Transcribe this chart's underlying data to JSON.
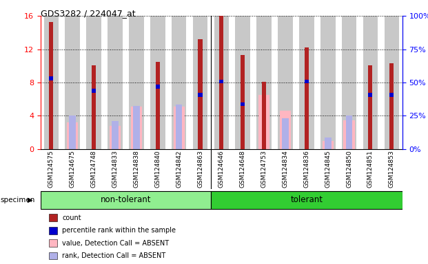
{
  "title": "GDS3282 / 224047_at",
  "samples": [
    "GSM124575",
    "GSM124675",
    "GSM124748",
    "GSM124833",
    "GSM124838",
    "GSM124840",
    "GSM124842",
    "GSM124863",
    "GSM124646",
    "GSM124648",
    "GSM124753",
    "GSM124834",
    "GSM124836",
    "GSM124845",
    "GSM124850",
    "GSM124851",
    "GSM124853"
  ],
  "group": [
    "non-tolerant",
    "non-tolerant",
    "non-tolerant",
    "non-tolerant",
    "non-tolerant",
    "non-tolerant",
    "non-tolerant",
    "non-tolerant",
    "tolerant",
    "tolerant",
    "tolerant",
    "tolerant",
    "tolerant",
    "tolerant",
    "tolerant",
    "tolerant",
    "tolerant"
  ],
  "count": [
    15.3,
    0,
    10.1,
    0,
    0,
    10.5,
    0,
    13.2,
    16.0,
    11.3,
    8.1,
    0,
    12.2,
    0,
    0,
    10.1,
    10.3
  ],
  "percentile": [
    8.5,
    0,
    7.0,
    0,
    0,
    7.5,
    0,
    6.5,
    8.1,
    5.4,
    0,
    0,
    8.1,
    0,
    0,
    6.5,
    6.5
  ],
  "value_absent": [
    0,
    3.2,
    0,
    2.8,
    5.1,
    0,
    5.1,
    0,
    0,
    0,
    6.5,
    4.6,
    0,
    1.0,
    3.5,
    0,
    0
  ],
  "rank_absent": [
    0,
    4.0,
    0,
    3.4,
    5.2,
    0,
    5.4,
    0,
    0,
    0,
    0,
    3.7,
    0,
    1.4,
    4.0,
    0,
    0
  ],
  "ylim_left": [
    0,
    16
  ],
  "ylim_right": [
    0,
    100
  ],
  "yticks_left": [
    0,
    4,
    8,
    12,
    16
  ],
  "yticks_right": [
    0,
    25,
    50,
    75,
    100
  ],
  "color_count": "#B22222",
  "color_percentile": "#0000CD",
  "color_value_absent": "#FFB6C1",
  "color_rank_absent": "#B0B0E8",
  "group_color_nt": "#90EE90",
  "group_color_t": "#32CD32",
  "bar_bg_color": "#C8C8C8",
  "legend_labels": [
    "count",
    "percentile rank within the sample",
    "value, Detection Call = ABSENT",
    "rank, Detection Call = ABSENT"
  ],
  "legend_colors": [
    "#B22222",
    "#0000CD",
    "#FFB6C1",
    "#B0B0E8"
  ],
  "non_tolerant_label": "non-tolerant",
  "tolerant_label": "tolerant",
  "specimen_label": "specimen"
}
